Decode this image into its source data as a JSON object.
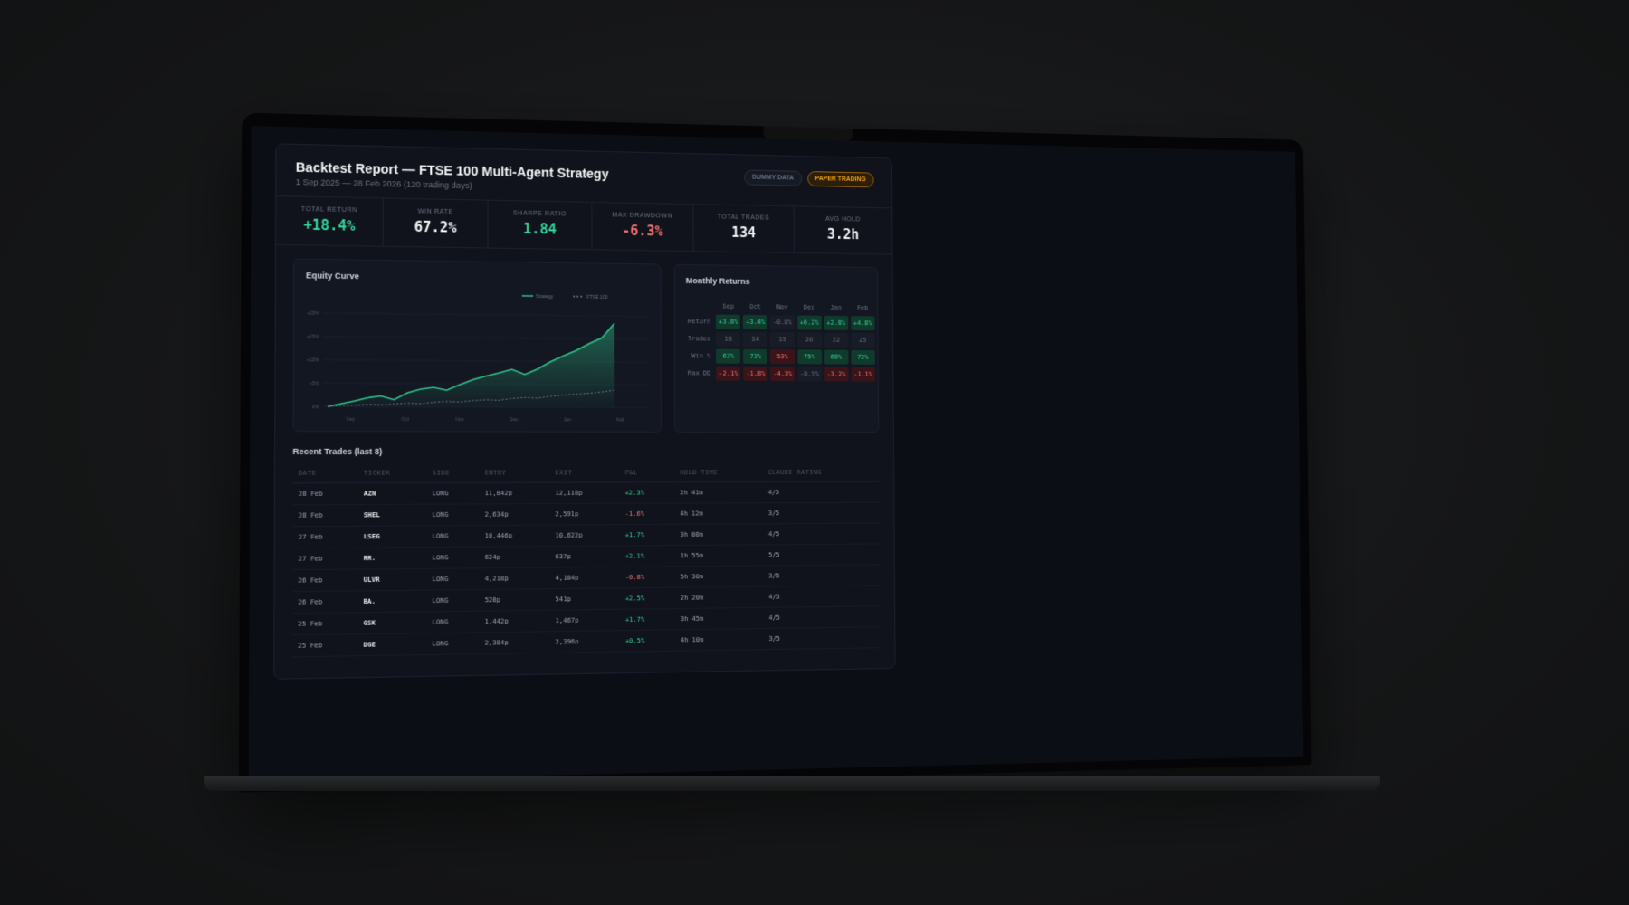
{
  "header": {
    "title": "Backtest Report — FTSE 100 Multi-Agent Strategy",
    "subtitle": "1 Sep 2025 — 28 Feb 2026 (120 trading days)",
    "badges": [
      "DUMMY DATA",
      "PAPER TRADING"
    ]
  },
  "kpis": [
    {
      "label": "TOTAL RETURN",
      "value": "+18.4%",
      "color": "#34d399"
    },
    {
      "label": "WIN RATE",
      "value": "67.2%",
      "color": "#f3f4f6"
    },
    {
      "label": "SHARPE RATIO",
      "value": "1.84",
      "color": "#34d399"
    },
    {
      "label": "MAX DRAWDOWN",
      "value": "-6.3%",
      "color": "#f87171"
    },
    {
      "label": "TOTAL TRADES",
      "value": "134",
      "color": "#f3f4f6"
    },
    {
      "label": "AVG HOLD",
      "value": "3.2h",
      "color": "#f3f4f6"
    }
  ],
  "equity_chart": {
    "title": "Equity Curve",
    "x_labels": [
      "Sep",
      "Oct",
      "Nov",
      "Dec",
      "Jan",
      "Feb"
    ],
    "ylim": [
      -1,
      21
    ],
    "yticks": [
      {
        "value": 0,
        "label": "0%"
      },
      {
        "value": 5,
        "label": "+5%"
      },
      {
        "value": 10,
        "label": "+10%"
      },
      {
        "value": 15,
        "label": "+15%"
      },
      {
        "value": 20,
        "label": "+20%"
      }
    ],
    "series": [
      {
        "name": "Strategy",
        "color": "#2fbf86",
        "values": [
          0,
          0.6,
          1.2,
          1.9,
          2.3,
          1.5,
          3.0,
          3.8,
          4.2,
          3.6,
          4.8,
          5.9,
          6.7,
          7.4,
          8.2,
          7.1,
          8.3,
          9.9,
          11.2,
          12.4,
          13.9,
          15.2,
          18.4
        ]
      },
      {
        "name": "FTSE 100",
        "color": "#6b7280",
        "values": [
          0,
          0.2,
          0.3,
          0.5,
          0.4,
          0.6,
          0.8,
          0.7,
          1.0,
          1.2,
          1.1,
          1.4,
          1.6,
          1.5,
          1.9,
          2.1,
          2.0,
          2.4,
          2.7,
          2.9,
          3.1,
          3.4,
          3.8
        ]
      }
    ]
  },
  "monthly_returns": {
    "title": "Monthly Returns",
    "columns": [
      "Sep",
      "Oct",
      "Nov",
      "Dec",
      "Jan",
      "Feb"
    ],
    "rows": [
      {
        "label": "Return",
        "cells": [
          "+3.8%",
          "+3.4%",
          "-0.8%",
          "+6.2%",
          "+2.8%",
          "+4.8%"
        ]
      },
      {
        "label": "Trades",
        "cells": [
          "18",
          "24",
          "19",
          "26",
          "22",
          "25"
        ]
      },
      {
        "label": "Win %",
        "cells": [
          "63%",
          "71%",
          "53%",
          "75%",
          "68%",
          "72%"
        ]
      },
      {
        "label": "Max DD",
        "cells": [
          "-2.1%",
          "-1.8%",
          "-4.3%",
          "-0.9%",
          "-3.2%",
          "-1.1%"
        ]
      }
    ]
  },
  "trades": {
    "title": "Recent Trades (last 8)",
    "columns": [
      "DATE",
      "TICKER",
      "SIDE",
      "ENTRY",
      "EXIT",
      "P&L",
      "HOLD TIME",
      "CLAUDE RATING"
    ],
    "rows": [
      [
        "28 Feb",
        "AZN",
        "LONG",
        "11,842p",
        "12,118p",
        "+2.3%",
        "2h 41m",
        "4/5"
      ],
      [
        "28 Feb",
        "SHEL",
        "LONG",
        "2,634p",
        "2,591p",
        "-1.6%",
        "4h 12m",
        "3/5"
      ],
      [
        "27 Feb",
        "LSEG",
        "LONG",
        "10,446p",
        "10,622p",
        "+1.7%",
        "3h 08m",
        "4/5"
      ],
      [
        "27 Feb",
        "RR.",
        "LONG",
        "624p",
        "637p",
        "+2.1%",
        "1h 55m",
        "5/5"
      ],
      [
        "26 Feb",
        "ULVR",
        "LONG",
        "4,218p",
        "4,184p",
        "-0.8%",
        "5h 30m",
        "3/5"
      ],
      [
        "26 Feb",
        "BA.",
        "LONG",
        "528p",
        "541p",
        "+2.5%",
        "2h 20m",
        "4/5"
      ],
      [
        "25 Feb",
        "GSK",
        "LONG",
        "1,442p",
        "1,467p",
        "+1.7%",
        "3h 45m",
        "4/5"
      ],
      [
        "25 Feb",
        "DGE",
        "LONG",
        "2,384p",
        "2,396p",
        "+0.5%",
        "4h 10m",
        "3/5"
      ]
    ]
  }
}
